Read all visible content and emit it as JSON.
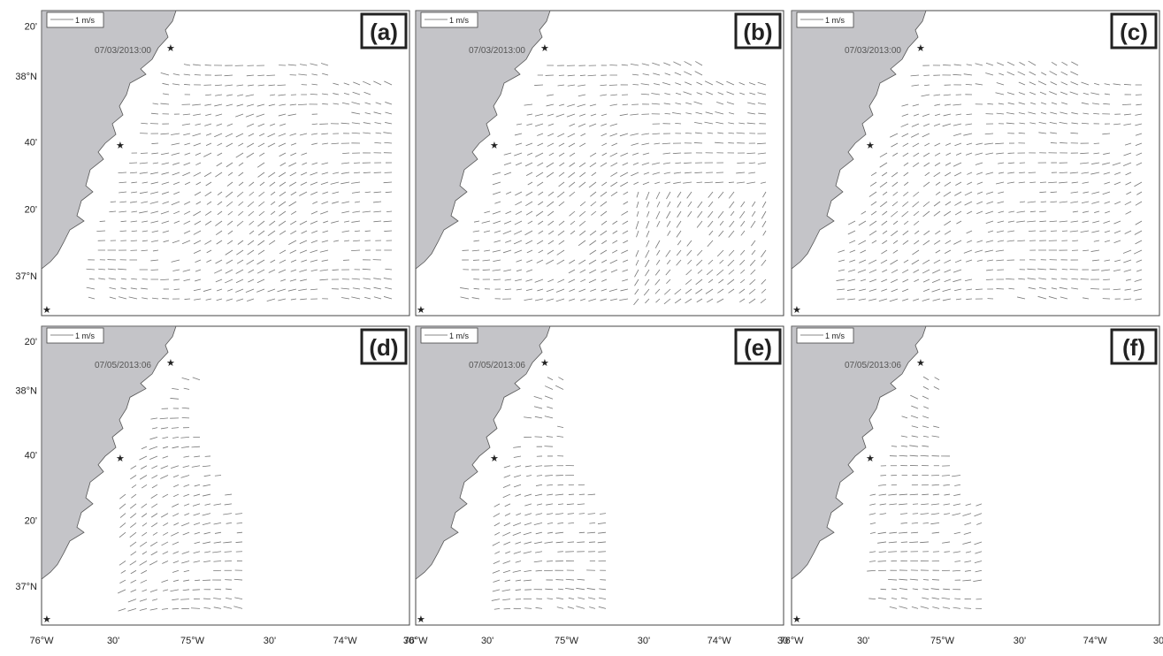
{
  "figure": {
    "panels": [
      {
        "label": "(a)",
        "time": "07/03/2013:00",
        "scale": "1 m/s"
      },
      {
        "label": "(b)",
        "time": "07/03/2013:00",
        "scale": "1 m/s"
      },
      {
        "label": "(c)",
        "time": "07/03/2013:00",
        "scale": "1 m/s"
      },
      {
        "label": "(d)",
        "time": "07/05/2013:06",
        "scale": "1 m/s"
      },
      {
        "label": "(e)",
        "time": "07/05/2013:06",
        "scale": "1 m/s"
      },
      {
        "label": "(f)",
        "time": "07/05/2013:06",
        "scale": "1 m/s"
      }
    ],
    "lat_ticks": [
      "20'",
      "38°N",
      "40'",
      "20'",
      "37°N"
    ],
    "lon_ticks": [
      "76°W",
      "30'",
      "75°W",
      "30'",
      "74°W",
      "30'"
    ]
  }
}
